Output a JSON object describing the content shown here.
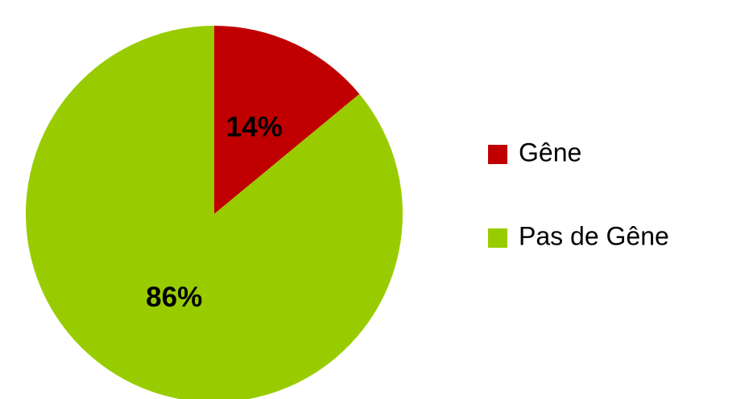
{
  "chart_data": {
    "type": "pie",
    "categories": [
      "Gêne",
      "Pas de Gêne"
    ],
    "values": [
      14,
      86
    ],
    "value_labels": [
      "14%",
      "86%"
    ],
    "colors": [
      "#c00000",
      "#99cc00"
    ],
    "legend": "right"
  }
}
